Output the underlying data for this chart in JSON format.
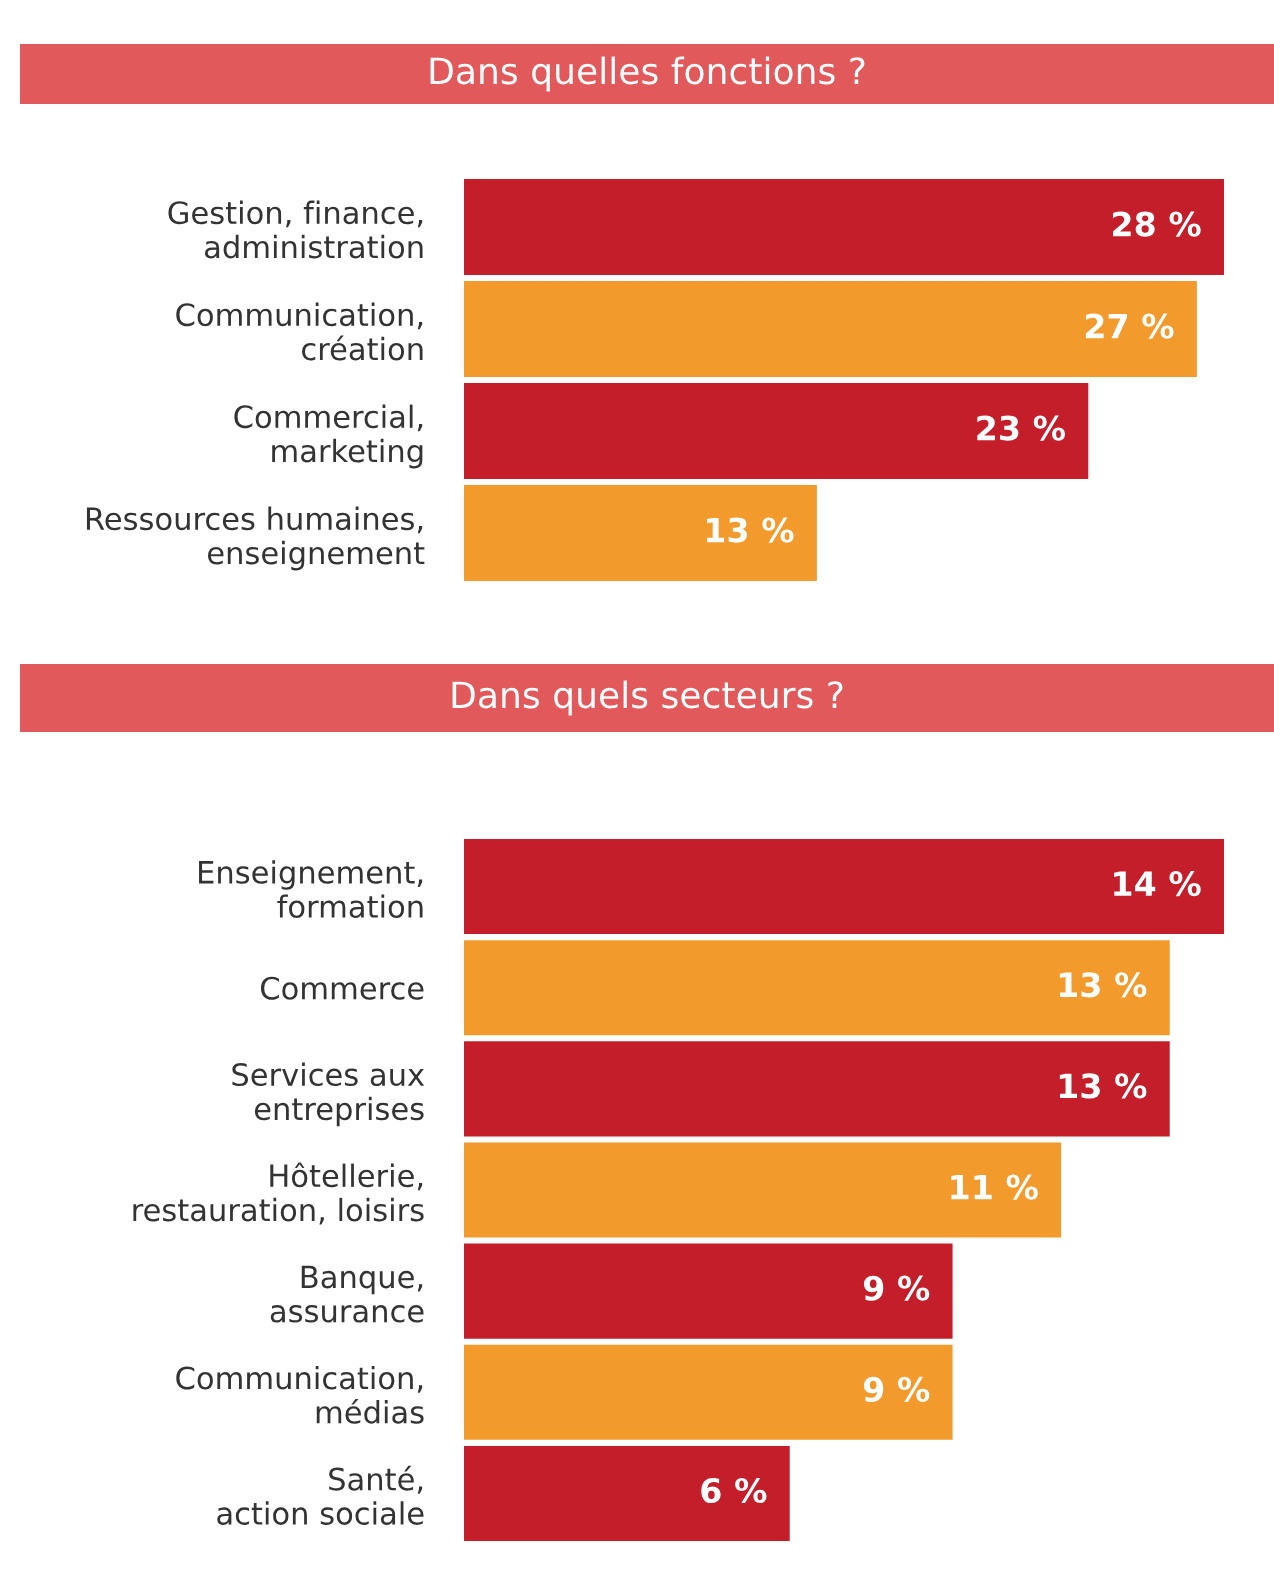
{
  "chart_data": [
    {
      "type": "bar",
      "orientation": "horizontal",
      "title": "Dans quelles fonctions ?",
      "categories": [
        "Gestion, finance,\nadministration",
        "Communication,\ncréation",
        "Commercial,\nmarketing",
        "Ressources humaines,\nenseignement"
      ],
      "values": [
        28,
        27,
        23,
        13
      ],
      "colors": [
        "#c41e2a",
        "#f39a2c",
        "#c41e2a",
        "#f39a2c"
      ],
      "value_labels": [
        "28 %",
        "27 %",
        "23 %",
        "13 %"
      ]
    },
    {
      "type": "bar",
      "orientation": "horizontal",
      "title": "Dans quels secteurs ?",
      "categories": [
        "Enseignement,\nformation",
        "Commerce",
        "Services aux\nentreprises",
        "Hôtellerie,\nrestauration, loisirs",
        "Banque,\nassurance",
        "Communication,\nmédias",
        "Santé,\naction sociale"
      ],
      "values": [
        14,
        13,
        13,
        11,
        9,
        9,
        6
      ],
      "colors": [
        "#c41e2a",
        "#f39a2c",
        "#c41e2a",
        "#f39a2c",
        "#c41e2a",
        "#f39a2c",
        "#c41e2a"
      ],
      "value_labels": [
        "14 %",
        "13 %",
        "13 %",
        "11 %",
        "9 %",
        "9 %",
        "6 %"
      ]
    }
  ]
}
